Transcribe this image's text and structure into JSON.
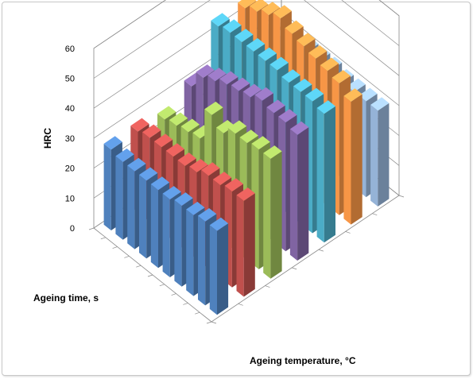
{
  "chart_data": {
    "type": "bar3d",
    "title": "",
    "ylabel": "HRC",
    "xlabel": "Ageing temperature, °C",
    "zlabel": "Ageing time, s",
    "ylim": [
      0,
      60
    ],
    "y_ticks": [
      "0",
      "10",
      "20",
      "30",
      "40",
      "50",
      "60"
    ],
    "grid": true,
    "legend": "none",
    "series": [
      {
        "color": "#4f81bd",
        "values": [
          27,
          26,
          26,
          26,
          26,
          26,
          27,
          27,
          28,
          28
        ]
      },
      {
        "color": "#c0504d",
        "values": [
          27,
          28,
          28,
          28,
          28,
          29,
          31,
          31,
          32,
          32
        ]
      },
      {
        "color": "#9bbb59",
        "values": [
          25,
          26,
          27,
          28,
          39,
          36,
          39,
          39,
          40,
          40
        ]
      },
      {
        "color": "#8064a2",
        "values": [
          30,
          36,
          38,
          40,
          41,
          42,
          44,
          43,
          43,
          42
        ]
      },
      {
        "color": "#4bacc6",
        "values": [
          44,
          45,
          45,
          45,
          45,
          45,
          44,
          44,
          44,
          43
        ]
      },
      {
        "color": "#f79646",
        "values": [
          44,
          46,
          48,
          50,
          48,
          47,
          46,
          45,
          44,
          41
        ]
      },
      {
        "color": "#95b3d7",
        "values": [
          30,
          31,
          32,
          33,
          33,
          33,
          32,
          32,
          32,
          32
        ]
      }
    ]
  }
}
